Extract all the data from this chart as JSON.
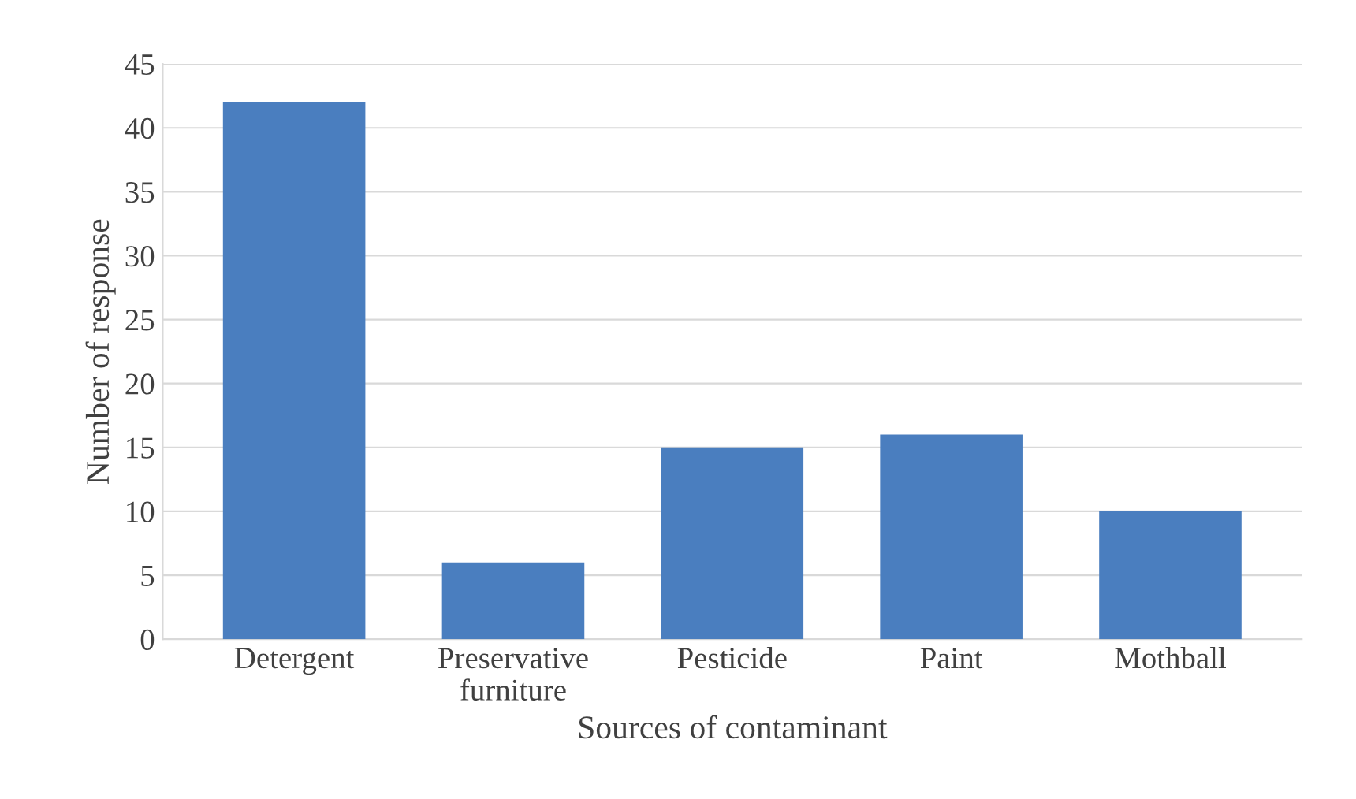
{
  "chart_data": {
    "type": "bar",
    "xlabel": "Sources of contaminant",
    "ylabel": "Number of response",
    "categories": [
      "Detergent",
      "Preservative\nfurniture",
      "Pesticide",
      "Paint",
      "Mothball"
    ],
    "values": [
      42,
      6,
      15,
      16,
      10
    ],
    "color": "#4a7ebf",
    "ylim": [
      0,
      45
    ],
    "yticks": [
      0,
      5,
      10,
      15,
      20,
      25,
      30,
      35,
      40,
      45
    ],
    "grid": "y",
    "legend": false
  }
}
